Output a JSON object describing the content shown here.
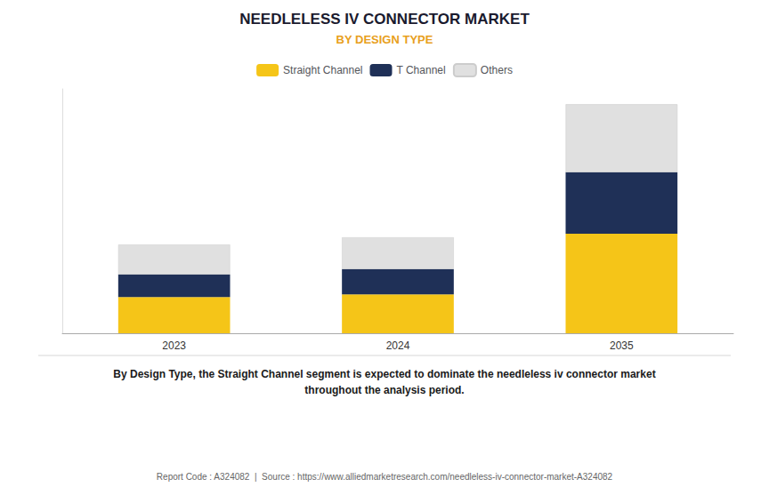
{
  "chart_data": {
    "type": "bar",
    "stacked": true,
    "title": "NEEDLELESS IV CONNECTOR MARKET",
    "title_color": "#1a1a2e",
    "subtitle": "BY DESIGN TYPE",
    "subtitle_color": "#E8A020",
    "categories": [
      "2023",
      "2024",
      "2035"
    ],
    "series": [
      {
        "name": "Straight Channel",
        "color": "#F5C518",
        "values": [
          40,
          43,
          110
        ]
      },
      {
        "name": "T Channel",
        "color": "#1F3057",
        "values": [
          25,
          28,
          68
        ]
      },
      {
        "name": "Others",
        "color": "#E0E0E0",
        "values": [
          33,
          35,
          75
        ]
      }
    ],
    "ylim": [
      0,
      270
    ],
    "tick_labels": "x",
    "grid": false,
    "legend": "top",
    "annotation": "By Design Type, the Straight Channel segment is expected to dominate the needleless iv connector market\nthroughout the analysis period.",
    "footer": "Report Code : A324082  |  Source : https://www.alliedmarketresearch.com/needleless-iv-connector-market-A324082"
  }
}
